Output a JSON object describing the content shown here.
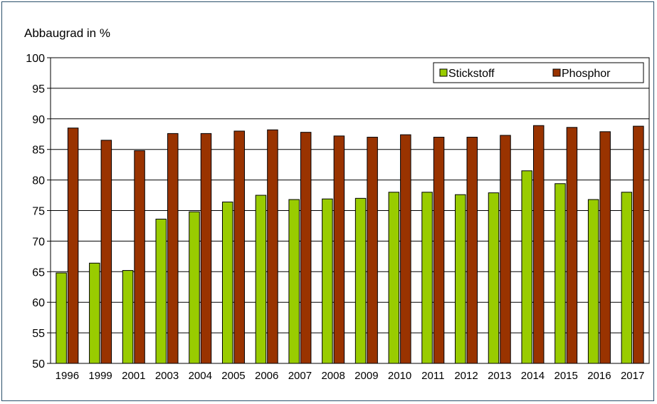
{
  "chart_data": {
    "type": "bar",
    "ylabel": "Abbaugrad in %",
    "ylim": [
      50,
      100
    ],
    "yticks": [
      50,
      55,
      60,
      65,
      70,
      75,
      80,
      85,
      90,
      95,
      100
    ],
    "categories": [
      "1996",
      "1999",
      "2001",
      "2003",
      "2004",
      "2005",
      "2006",
      "2007",
      "2008",
      "2009",
      "2010",
      "2011",
      "2012",
      "2013",
      "2014",
      "2015",
      "2016",
      "2017"
    ],
    "series": [
      {
        "name": "Stickstoff",
        "color": "#99cc00",
        "values": [
          64.8,
          66.4,
          65.2,
          73.6,
          74.8,
          76.4,
          77.5,
          76.8,
          76.9,
          77.0,
          78.0,
          78.0,
          77.6,
          77.9,
          81.5,
          79.4,
          76.8,
          78.0
        ]
      },
      {
        "name": "Phosphor",
        "color": "#993300",
        "values": [
          88.5,
          86.5,
          84.8,
          87.6,
          87.6,
          88.0,
          88.2,
          87.8,
          87.2,
          87.0,
          87.4,
          87.0,
          87.0,
          87.3,
          88.9,
          88.6,
          87.9,
          88.8
        ]
      }
    ],
    "legend": "top-right",
    "grid": true
  }
}
